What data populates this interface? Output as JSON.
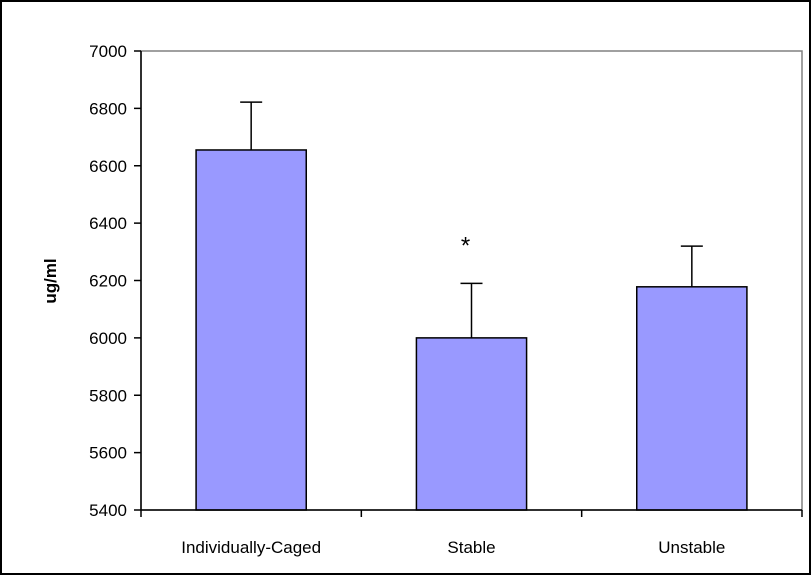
{
  "chart_data": {
    "type": "bar",
    "categories": [
      "Individually-Caged",
      "Stable",
      "Unstable"
    ],
    "values": [
      6655,
      6000,
      6178
    ],
    "error_upper": [
      6822,
      6190,
      6320
    ],
    "ylabel": "ug/ml",
    "xlabel": "",
    "ylim": [
      5400,
      7000
    ],
    "yticks": [
      5400,
      5600,
      5800,
      6000,
      6200,
      6400,
      6600,
      6800,
      7000
    ],
    "ytick_labels": [
      "5400",
      "5600",
      "5800",
      "6000",
      "6200",
      "6400",
      "6600",
      "6800",
      "7000"
    ],
    "annotations": [
      {
        "category": "Stable",
        "text": "*"
      }
    ],
    "grid": false,
    "bar_color": "#9999ff"
  }
}
